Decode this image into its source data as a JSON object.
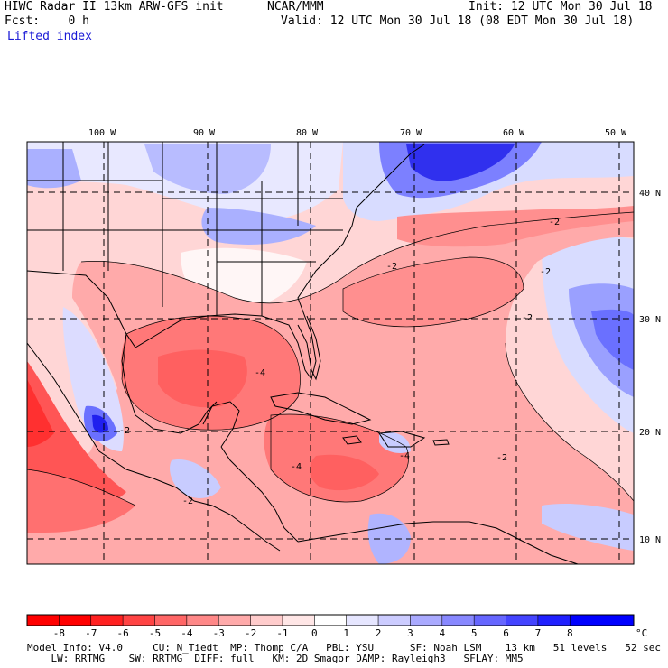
{
  "header": {
    "left_line1": "HIWC Radar II 13km ARW-GFS init",
    "center_line1": "NCAR/MMM",
    "right_line1": "Init: 12 UTC Mon 30 Jul 18",
    "left_line2": "Fcst:    0 h",
    "right_line2": "Valid: 12 UTC Mon 30 Jul 18 (08 EDT Mon 30 Jul 18)",
    "field_label": "Lifted index"
  },
  "map": {
    "longitudes": [
      "100 W",
      "90 W",
      "80 W",
      "70 W",
      "60 W",
      "50 W"
    ],
    "latitudes": [
      "40 N",
      "30 N",
      "20 N",
      "10 N"
    ],
    "contour_labels": [
      "-2",
      "-2",
      "-2",
      "-2",
      "-4",
      "-4",
      "-4",
      "-2",
      "-2",
      "-2"
    ],
    "palette_note": "red = negative (unstable), blue = positive (stable)"
  },
  "colorbar": {
    "ticks": [
      "-8",
      "-7",
      "-6",
      "-5",
      "-4",
      "-3",
      "-2",
      "-1",
      "0",
      "1",
      "2",
      "3",
      "4",
      "5",
      "6",
      "7",
      "8"
    ],
    "unit": "°C",
    "colors": [
      "#ff0000",
      "#ff2020",
      "#ff4444",
      "#ff6666",
      "#ff8888",
      "#ffaaaa",
      "#ffcccc",
      "#ffe6e6",
      "#ffffff",
      "#e6e6ff",
      "#ccccff",
      "#aaaaff",
      "#8888ff",
      "#6666ff",
      "#4444ff",
      "#2020ff",
      "#0000ff"
    ]
  },
  "footer": {
    "line1": "Model Info: V4.0     CU: N_Tiedt  MP: Thomp C/A   PBL: YSU      SF: Noah LSM    13 km   51 levels   52 sec",
    "line2": "    LW: RRTMG    SW: RRTMG  DIFF: full   KM: 2D Smagor DAMP: Rayleigh3   SFLAY: MM5"
  }
}
